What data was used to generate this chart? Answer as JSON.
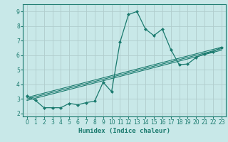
{
  "title": "",
  "xlabel": "Humidex (Indice chaleur)",
  "bg_color": "#c8e8e8",
  "grid_color": "#b0cccc",
  "line_color": "#1a7a6e",
  "xlim": [
    -0.5,
    23.5
  ],
  "ylim": [
    1.8,
    9.5
  ],
  "xticks": [
    0,
    1,
    2,
    3,
    4,
    5,
    6,
    7,
    8,
    9,
    10,
    11,
    12,
    13,
    14,
    15,
    16,
    17,
    18,
    19,
    20,
    21,
    22,
    23
  ],
  "yticks": [
    2,
    3,
    4,
    5,
    6,
    7,
    8,
    9
  ],
  "series1_x": [
    0,
    1,
    2,
    3,
    4,
    5,
    6,
    7,
    8,
    9,
    10,
    11,
    12,
    13,
    14,
    15,
    16,
    17,
    18,
    19,
    20,
    21,
    22,
    23
  ],
  "series1_y": [
    3.2,
    2.9,
    2.4,
    2.4,
    2.4,
    2.7,
    2.6,
    2.75,
    2.85,
    4.15,
    3.5,
    6.9,
    8.8,
    9.0,
    7.8,
    7.35,
    7.8,
    6.4,
    5.35,
    5.4,
    5.85,
    6.1,
    6.25,
    6.55
  ],
  "series2_x": [
    0,
    23
  ],
  "series2_y": [
    2.9,
    6.35
  ],
  "series3_x": [
    0,
    23
  ],
  "series3_y": [
    3.0,
    6.45
  ],
  "series4_x": [
    0,
    23
  ],
  "series4_y": [
    3.1,
    6.55
  ]
}
